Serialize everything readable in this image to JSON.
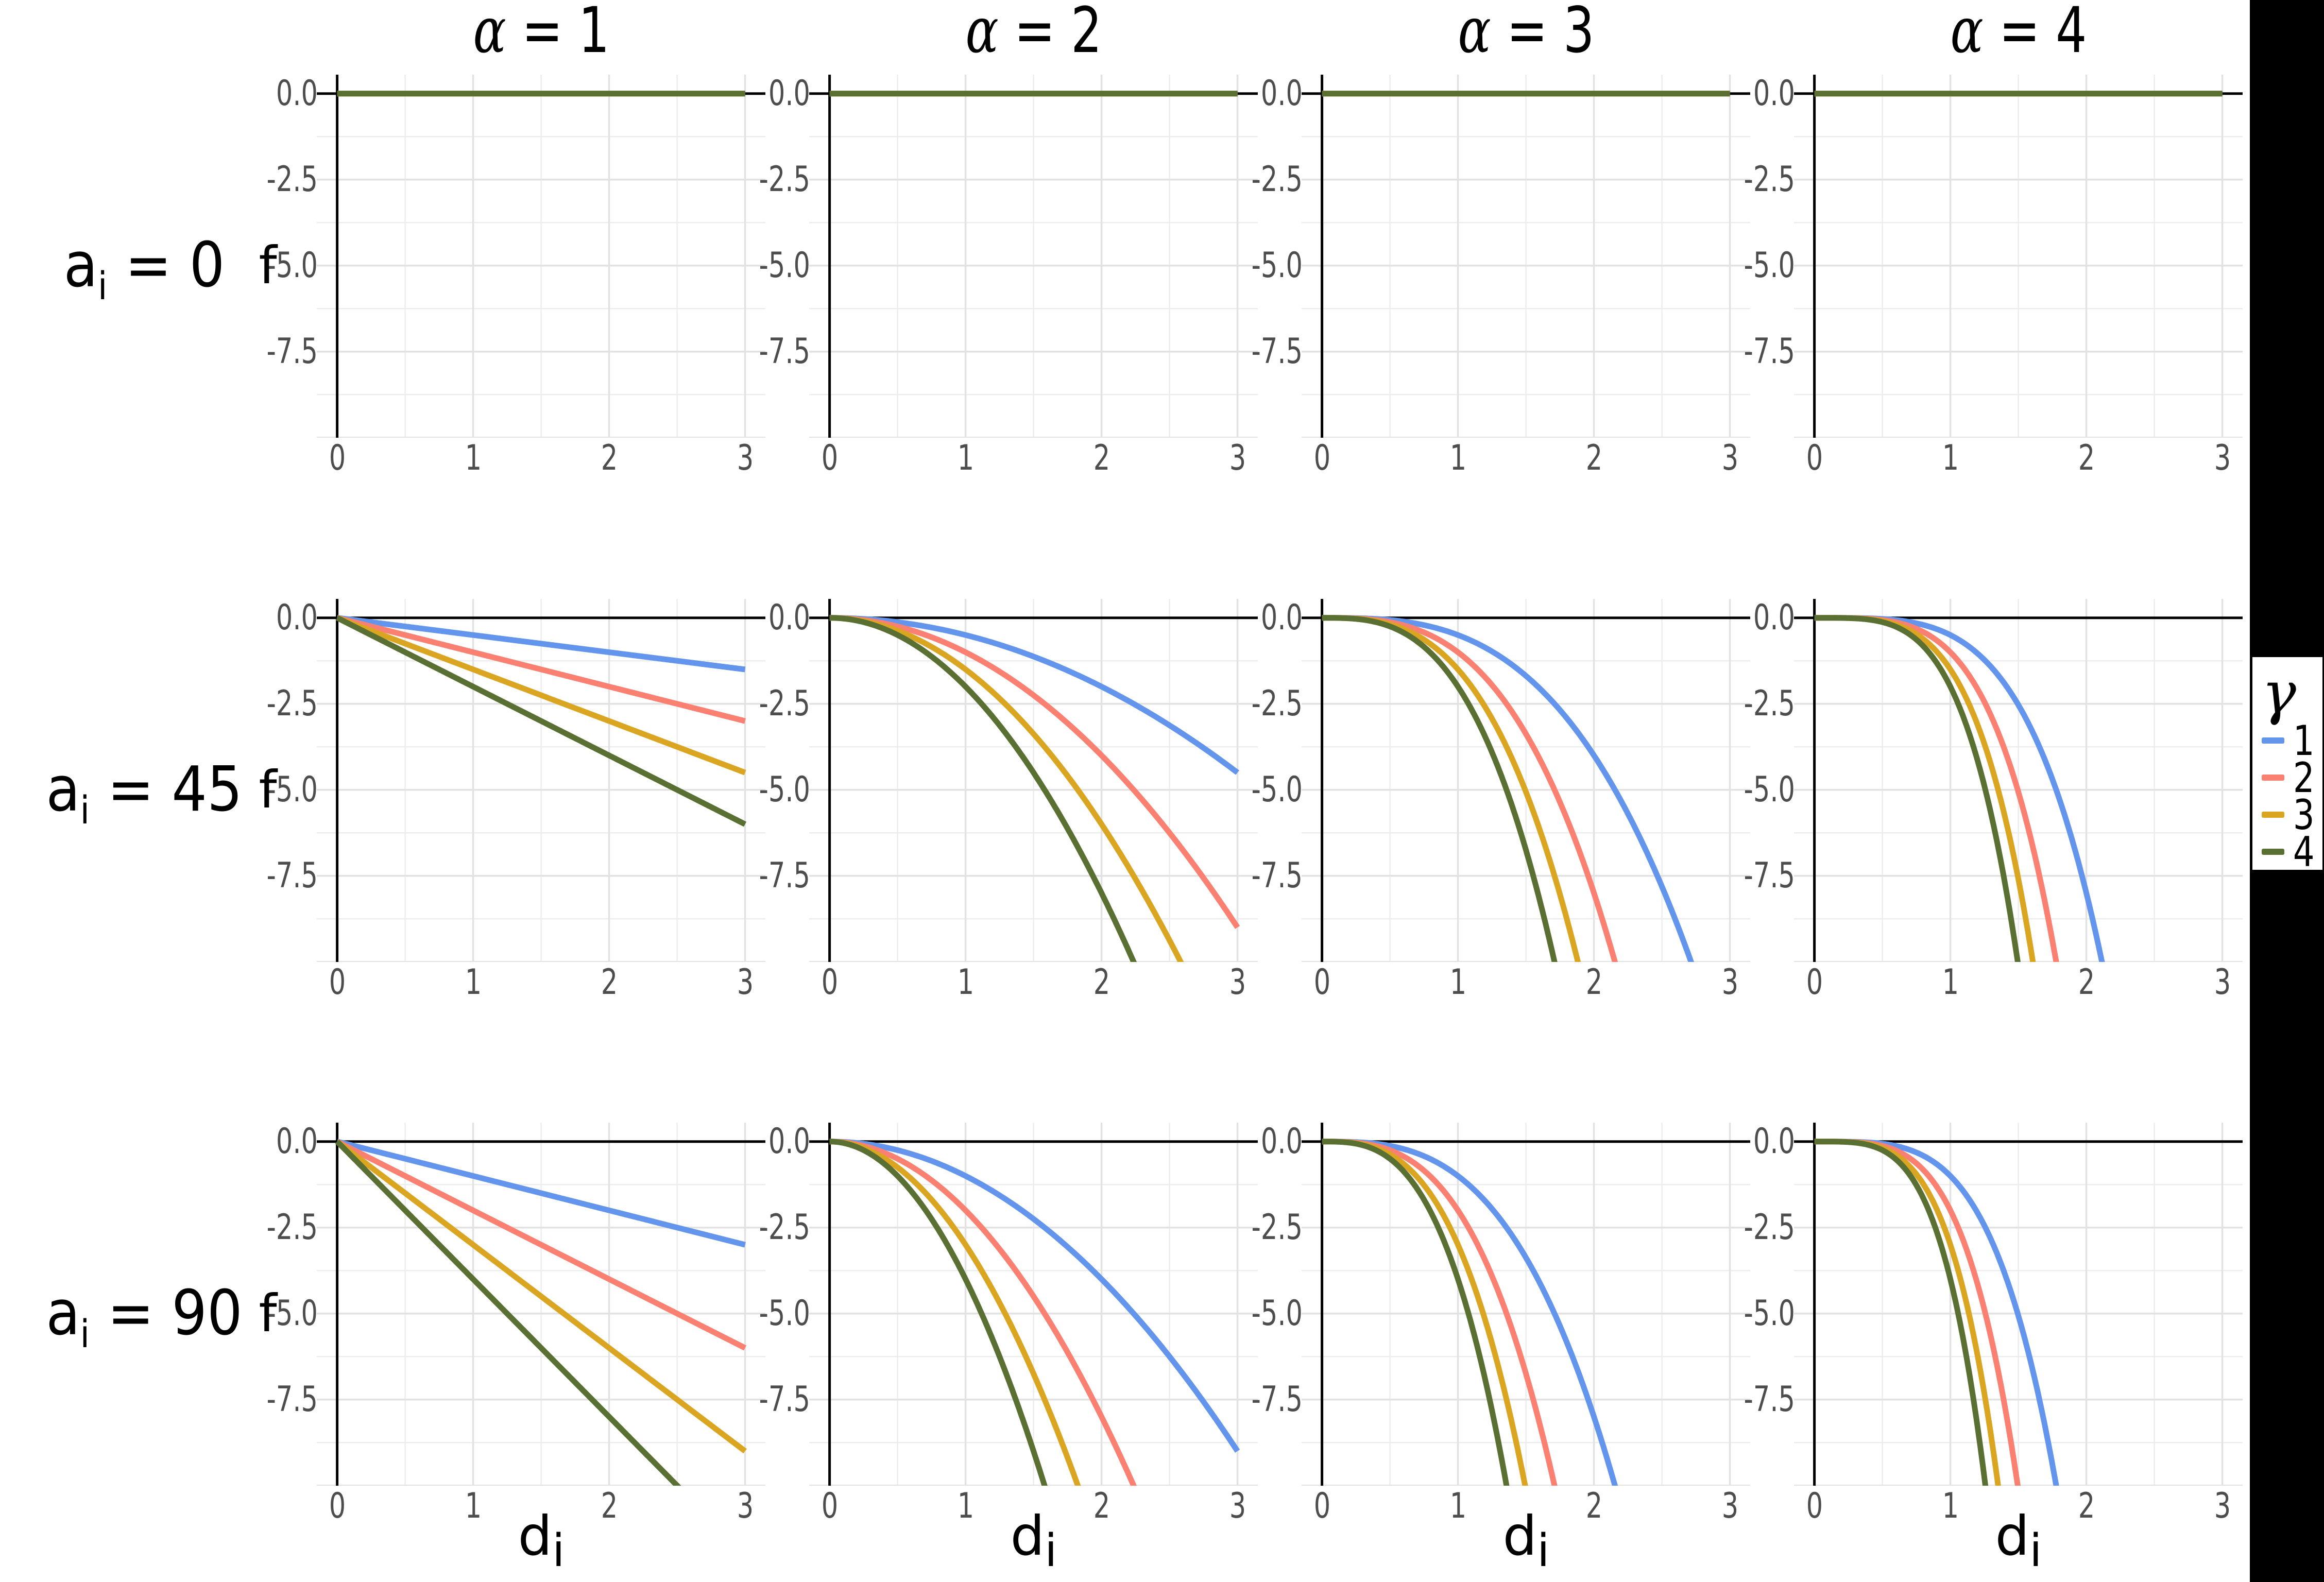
{
  "figure": {
    "background": "#FFFFFF",
    "right_strip_color": "#000000"
  },
  "chart_data": {
    "type": "line",
    "title": "",
    "description": "3x4 facet grid of function curves f versus d_i, rows faceted by a_i, columns by alpha, line color by gamma",
    "formula": "f(d) = -(a_i / 90) * gamma * d^alpha",
    "facet_rows": [
      {
        "label_prefix": "a",
        "label_sub": "i",
        "label_suffix": " = 0",
        "a": 0
      },
      {
        "label_prefix": "a",
        "label_sub": "i",
        "label_suffix": " = 45",
        "a": 45
      },
      {
        "label_prefix": "a",
        "label_sub": "i",
        "label_suffix": " = 90",
        "a": 90
      }
    ],
    "facet_cols": [
      {
        "label_greek": "α",
        "label_rest": " = 1",
        "alpha": 1
      },
      {
        "label_greek": "α",
        "label_rest": " = 2",
        "alpha": 2
      },
      {
        "label_greek": "α",
        "label_rest": " = 3",
        "alpha": 3
      },
      {
        "label_greek": "α",
        "label_rest": " = 4",
        "alpha": 4
      }
    ],
    "series": [
      {
        "name": "1",
        "gamma": 1,
        "color": "#6495ED"
      },
      {
        "name": "2",
        "gamma": 2,
        "color": "#FA8072"
      },
      {
        "name": "3",
        "gamma": 3,
        "color": "#DAA520"
      },
      {
        "name": "4",
        "gamma": 4,
        "color": "#5A7032"
      }
    ],
    "x_axis": {
      "label_prefix": "d",
      "label_sub": "i",
      "tick_labels": [
        "0",
        "1",
        "2",
        "3"
      ],
      "tick_values": [
        0,
        1,
        2,
        3
      ],
      "data_range": [
        0,
        3
      ],
      "panel_range": [
        -0.15,
        3.15
      ]
    },
    "y_axis": {
      "label": "f",
      "tick_labels": [
        "0.0",
        "-2.5",
        "-5.0",
        "-7.5"
      ],
      "tick_values": [
        0,
        -2.5,
        -5,
        -7.5
      ],
      "panel_range": [
        -10.0,
        0.55
      ],
      "clip_below": -10.0
    },
    "grid": {
      "major_color": "#E2E2E2",
      "minor_color": "#EDEDED",
      "major_x": [
        1,
        2,
        3
      ],
      "minor_x": [
        0.5,
        1.5,
        2.5
      ],
      "major_y": [
        -2.5,
        -5,
        -7.5,
        -10
      ],
      "minor_y": [
        -1.25,
        -3.75,
        -6.25,
        -8.75
      ]
    },
    "axis_lines": {
      "color": "#000000",
      "x_intercept": 0,
      "y_intercept": 0
    },
    "tick_label_color": "#4D4D4D",
    "legend": {
      "title": "γ",
      "position": "right",
      "entries": [
        "1",
        "2",
        "3",
        "4"
      ]
    },
    "sample_points": {
      "x": [
        0,
        0.5,
        1,
        1.5,
        2,
        2.5,
        3
      ],
      "f_values_by_row_col_gamma": [
        [
          [
            [
              0,
              0,
              0,
              0,
              0,
              0,
              0
            ],
            [
              0,
              0,
              0,
              0,
              0,
              0,
              0
            ],
            [
              0,
              0,
              0,
              0,
              0,
              0,
              0
            ],
            [
              0,
              0,
              0,
              0,
              0,
              0,
              0
            ]
          ],
          [
            [
              0,
              0,
              0,
              0,
              0,
              0,
              0
            ],
            [
              0,
              0,
              0,
              0,
              0,
              0,
              0
            ],
            [
              0,
              0,
              0,
              0,
              0,
              0,
              0
            ],
            [
              0,
              0,
              0,
              0,
              0,
              0,
              0
            ]
          ],
          [
            [
              0,
              0,
              0,
              0,
              0,
              0,
              0
            ],
            [
              0,
              0,
              0,
              0,
              0,
              0,
              0
            ],
            [
              0,
              0,
              0,
              0,
              0,
              0,
              0
            ],
            [
              0,
              0,
              0,
              0,
              0,
              0,
              0
            ]
          ],
          [
            [
              0,
              0,
              0,
              0,
              0,
              0,
              0
            ],
            [
              0,
              0,
              0,
              0,
              0,
              0,
              0
            ],
            [
              0,
              0,
              0,
              0,
              0,
              0,
              0
            ],
            [
              0,
              0,
              0,
              0,
              0,
              0,
              0
            ]
          ]
        ],
        [
          [
            [
              0,
              -0.25,
              -0.5,
              -0.75,
              -1,
              -1.25,
              -1.5
            ],
            [
              0,
              -0.5,
              -1,
              -1.5,
              -2,
              -2.5,
              -3
            ],
            [
              0,
              -0.75,
              -1.5,
              -2.25,
              -3,
              -3.75,
              -4.5
            ],
            [
              0,
              -1,
              -2,
              -3,
              -4,
              -5,
              -6
            ]
          ],
          [
            [
              0,
              -0.125,
              -0.5,
              -1.125,
              -2,
              -3.125,
              -4.5
            ],
            [
              0,
              -0.25,
              -1,
              -2.25,
              -4,
              -6.25,
              -9
            ],
            [
              0,
              -0.375,
              -1.5,
              -3.375,
              -6,
              -9.375,
              -13.5
            ],
            [
              0,
              -0.5,
              -2,
              -4.5,
              -8,
              -12.5,
              -18
            ]
          ],
          [
            [
              0,
              -0.0625,
              -0.5,
              -1.6875,
              -4,
              -7.8125,
              -13.5
            ],
            [
              0,
              -0.125,
              -1,
              -3.375,
              -8,
              -15.625,
              -27
            ],
            [
              0,
              -0.1875,
              -1.5,
              -5.0625,
              -12,
              -23.4375,
              -40.5
            ],
            [
              0,
              -0.25,
              -2,
              -6.75,
              -16,
              -31.25,
              -54
            ]
          ],
          [
            [
              0,
              -0.03125,
              -0.5,
              -2.53125,
              -8,
              -19.53125,
              -40.5
            ],
            [
              0,
              -0.0625,
              -1,
              -5.0625,
              -16,
              -39.0625,
              -81
            ],
            [
              0,
              -0.09375,
              -1.5,
              -7.59375,
              -24,
              -58.59375,
              -121.5
            ],
            [
              0,
              -0.125,
              -2,
              -10.125,
              -32,
              -78.125,
              -162
            ]
          ]
        ],
        [
          [
            [
              0,
              -0.5,
              -1,
              -1.5,
              -2,
              -2.5,
              -3
            ],
            [
              0,
              -1,
              -2,
              -3,
              -4,
              -5,
              -6
            ],
            [
              0,
              -1.5,
              -3,
              -4.5,
              -6,
              -7.5,
              -9
            ],
            [
              0,
              -2,
              -4,
              -6,
              -8,
              -10,
              -12
            ]
          ],
          [
            [
              0,
              -0.25,
              -1,
              -2.25,
              -4,
              -6.25,
              -9
            ],
            [
              0,
              -0.5,
              -2,
              -4.5,
              -8,
              -12.5,
              -18
            ],
            [
              0,
              -0.75,
              -3,
              -6.75,
              -12,
              -18.75,
              -27
            ],
            [
              0,
              -1,
              -4,
              -9,
              -16,
              -25,
              -36
            ]
          ],
          [
            [
              0,
              -0.125,
              -1,
              -3.375,
              -8,
              -15.625,
              -27
            ],
            [
              0,
              -0.25,
              -2,
              -6.75,
              -16,
              -31.25,
              -54
            ],
            [
              0,
              -0.375,
              -3,
              -10.125,
              -24,
              -46.875,
              -81
            ],
            [
              0,
              -0.5,
              -4,
              -13.5,
              -32,
              -62.5,
              -108
            ]
          ],
          [
            [
              0,
              -0.0625,
              -1,
              -5.0625,
              -16,
              -39.0625,
              -81
            ],
            [
              0,
              -0.125,
              -2,
              -10.125,
              -32,
              -78.125,
              -162
            ],
            [
              0,
              -0.1875,
              -3,
              -15.1875,
              -48,
              -117.1875,
              -243
            ],
            [
              0,
              -0.25,
              -4,
              -20.25,
              -64,
              -156.25,
              -324
            ]
          ]
        ]
      ]
    }
  }
}
